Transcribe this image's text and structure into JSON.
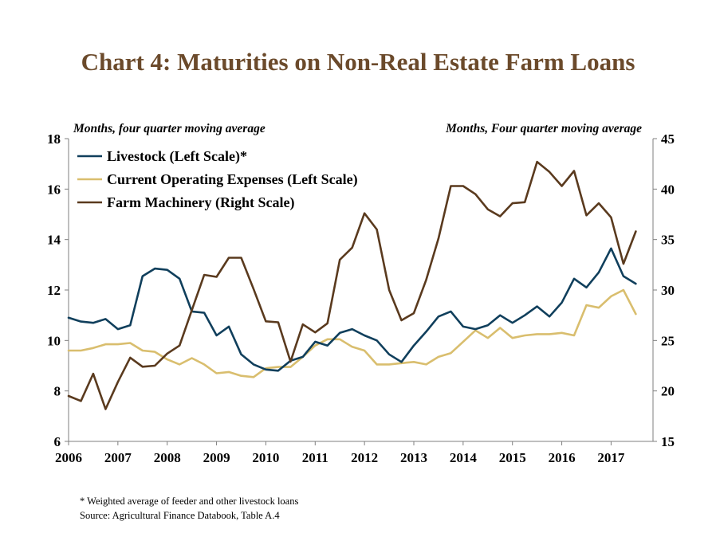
{
  "title": "Chart 4: Maturities on Non-Real Estate Farm Loans",
  "footnotes": {
    "note": "* Weighted average of feeder and other livestock loans",
    "source": "Source: Agricultural Finance Databook, Table A.4"
  },
  "colors": {
    "livestock": "#103F5C",
    "operating": "#D9BE6E",
    "machinery": "#5A3A1E",
    "title": "#6B4A2B"
  },
  "chart_data": {
    "type": "line",
    "left_axis_label": "Months, four quarter moving average",
    "right_axis_label": "Months, Four quarter moving average",
    "ylim_left": [
      6,
      18
    ],
    "ylim_right": [
      15,
      45
    ],
    "yticks_left": [
      "6",
      "8",
      "10",
      "12",
      "14",
      "16",
      "18"
    ],
    "yticks_right": [
      "15",
      "20",
      "25",
      "30",
      "35",
      "40",
      "45"
    ],
    "xticks": [
      "2006",
      "2007",
      "2008",
      "2009",
      "2010",
      "2011",
      "2012",
      "2013",
      "2014",
      "2015",
      "2016",
      "2017"
    ],
    "x_start": 2006.0,
    "x_step": 0.25,
    "grid": false,
    "legend_position": "top-left",
    "series": [
      {
        "name": "Livestock (Left Scale)*",
        "axis": "left",
        "values": [
          10.9,
          10.75,
          10.7,
          10.85,
          10.45,
          10.6,
          12.55,
          12.85,
          12.8,
          12.45,
          11.15,
          11.1,
          10.2,
          10.55,
          9.45,
          9.05,
          8.85,
          8.8,
          9.2,
          9.35,
          9.95,
          9.8,
          10.3,
          10.45,
          10.2,
          10.0,
          9.45,
          9.15,
          9.8,
          10.35,
          10.95,
          11.15,
          10.55,
          10.45,
          10.6,
          11.0,
          10.7,
          11.0,
          11.35,
          10.95,
          11.5,
          12.45,
          12.1,
          12.7,
          13.65,
          12.55,
          12.25
        ]
      },
      {
        "name": "Current Operating Expenses (Left Scale)",
        "axis": "left",
        "values": [
          9.6,
          9.6,
          9.7,
          9.85,
          9.85,
          9.9,
          9.6,
          9.55,
          9.25,
          9.05,
          9.3,
          9.05,
          8.7,
          8.75,
          8.6,
          8.55,
          8.9,
          8.95,
          8.95,
          9.35,
          9.8,
          10.05,
          10.05,
          9.75,
          9.6,
          9.05,
          9.05,
          9.1,
          9.15,
          9.05,
          9.35,
          9.5,
          9.95,
          10.4,
          10.1,
          10.5,
          10.1,
          10.2,
          10.25,
          10.25,
          10.3,
          10.2,
          11.4,
          11.3,
          11.75,
          12.0,
          11.05
        ]
      },
      {
        "name": "Farm Machinery (Right Scale)",
        "axis": "right",
        "values": [
          19.5,
          19.0,
          21.7,
          18.2,
          20.9,
          23.3,
          22.4,
          22.5,
          23.7,
          24.5,
          28.0,
          31.5,
          31.3,
          33.2,
          33.2,
          30.1,
          26.9,
          26.8,
          22.9,
          26.6,
          25.8,
          26.7,
          33.0,
          34.2,
          37.6,
          36.0,
          30.0,
          27.0,
          27.7,
          31.0,
          35.1,
          40.3,
          40.3,
          39.5,
          38.0,
          37.3,
          38.6,
          38.7,
          42.7,
          41.7,
          40.3,
          41.8,
          37.4,
          38.6,
          37.2,
          32.6,
          35.8
        ]
      }
    ]
  }
}
